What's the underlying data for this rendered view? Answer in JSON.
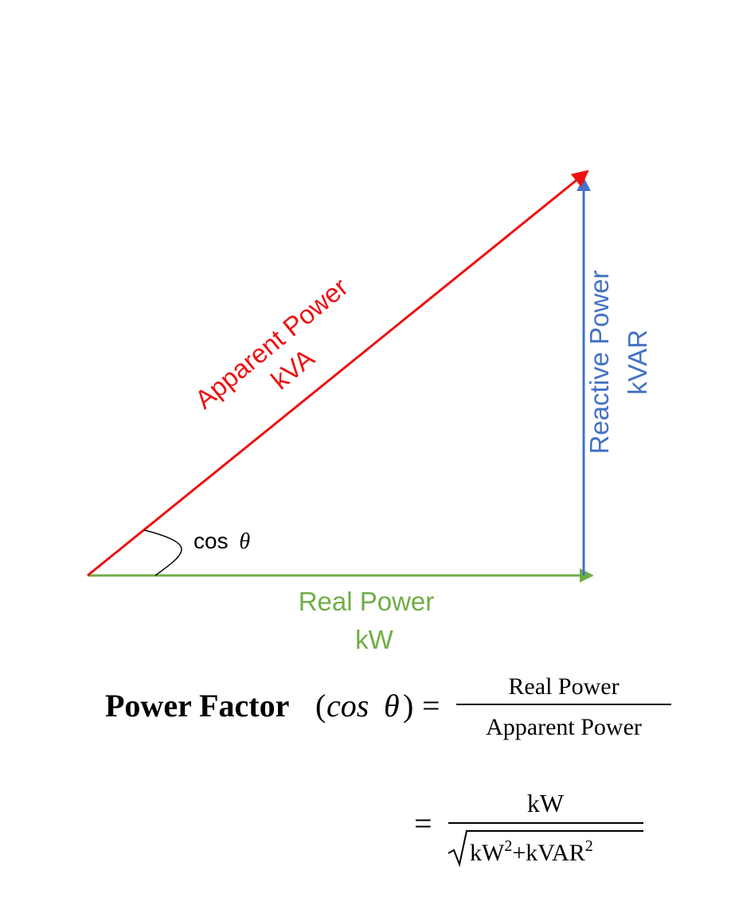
{
  "colors": {
    "apparent": "#ee1111",
    "reactive": "#4472c4",
    "real": "#70ad47",
    "text": "#000000"
  },
  "labels": {
    "apparent_line1": "Apparent Power",
    "apparent_line2": "kVA",
    "reactive_line1": "Reactive Power",
    "reactive_line2": "kVAR",
    "real_line1": "Real Power",
    "real_line2": "kW",
    "angle": "cos",
    "theta": "θ"
  },
  "formula": {
    "title": "Power Factor",
    "paren_open": "(",
    "cos": "cos",
    "theta": "θ",
    "paren_close": ")",
    "equals": "=",
    "numerator": "Real Power",
    "denominator": "Apparent Power",
    "equals2": "=",
    "numerator2": "kW",
    "den2_kw": "kW",
    "den2_sq1": "2",
    "den2_plus": "+",
    "den2_kvar": "kVAR",
    "den2_sq2": "2"
  }
}
